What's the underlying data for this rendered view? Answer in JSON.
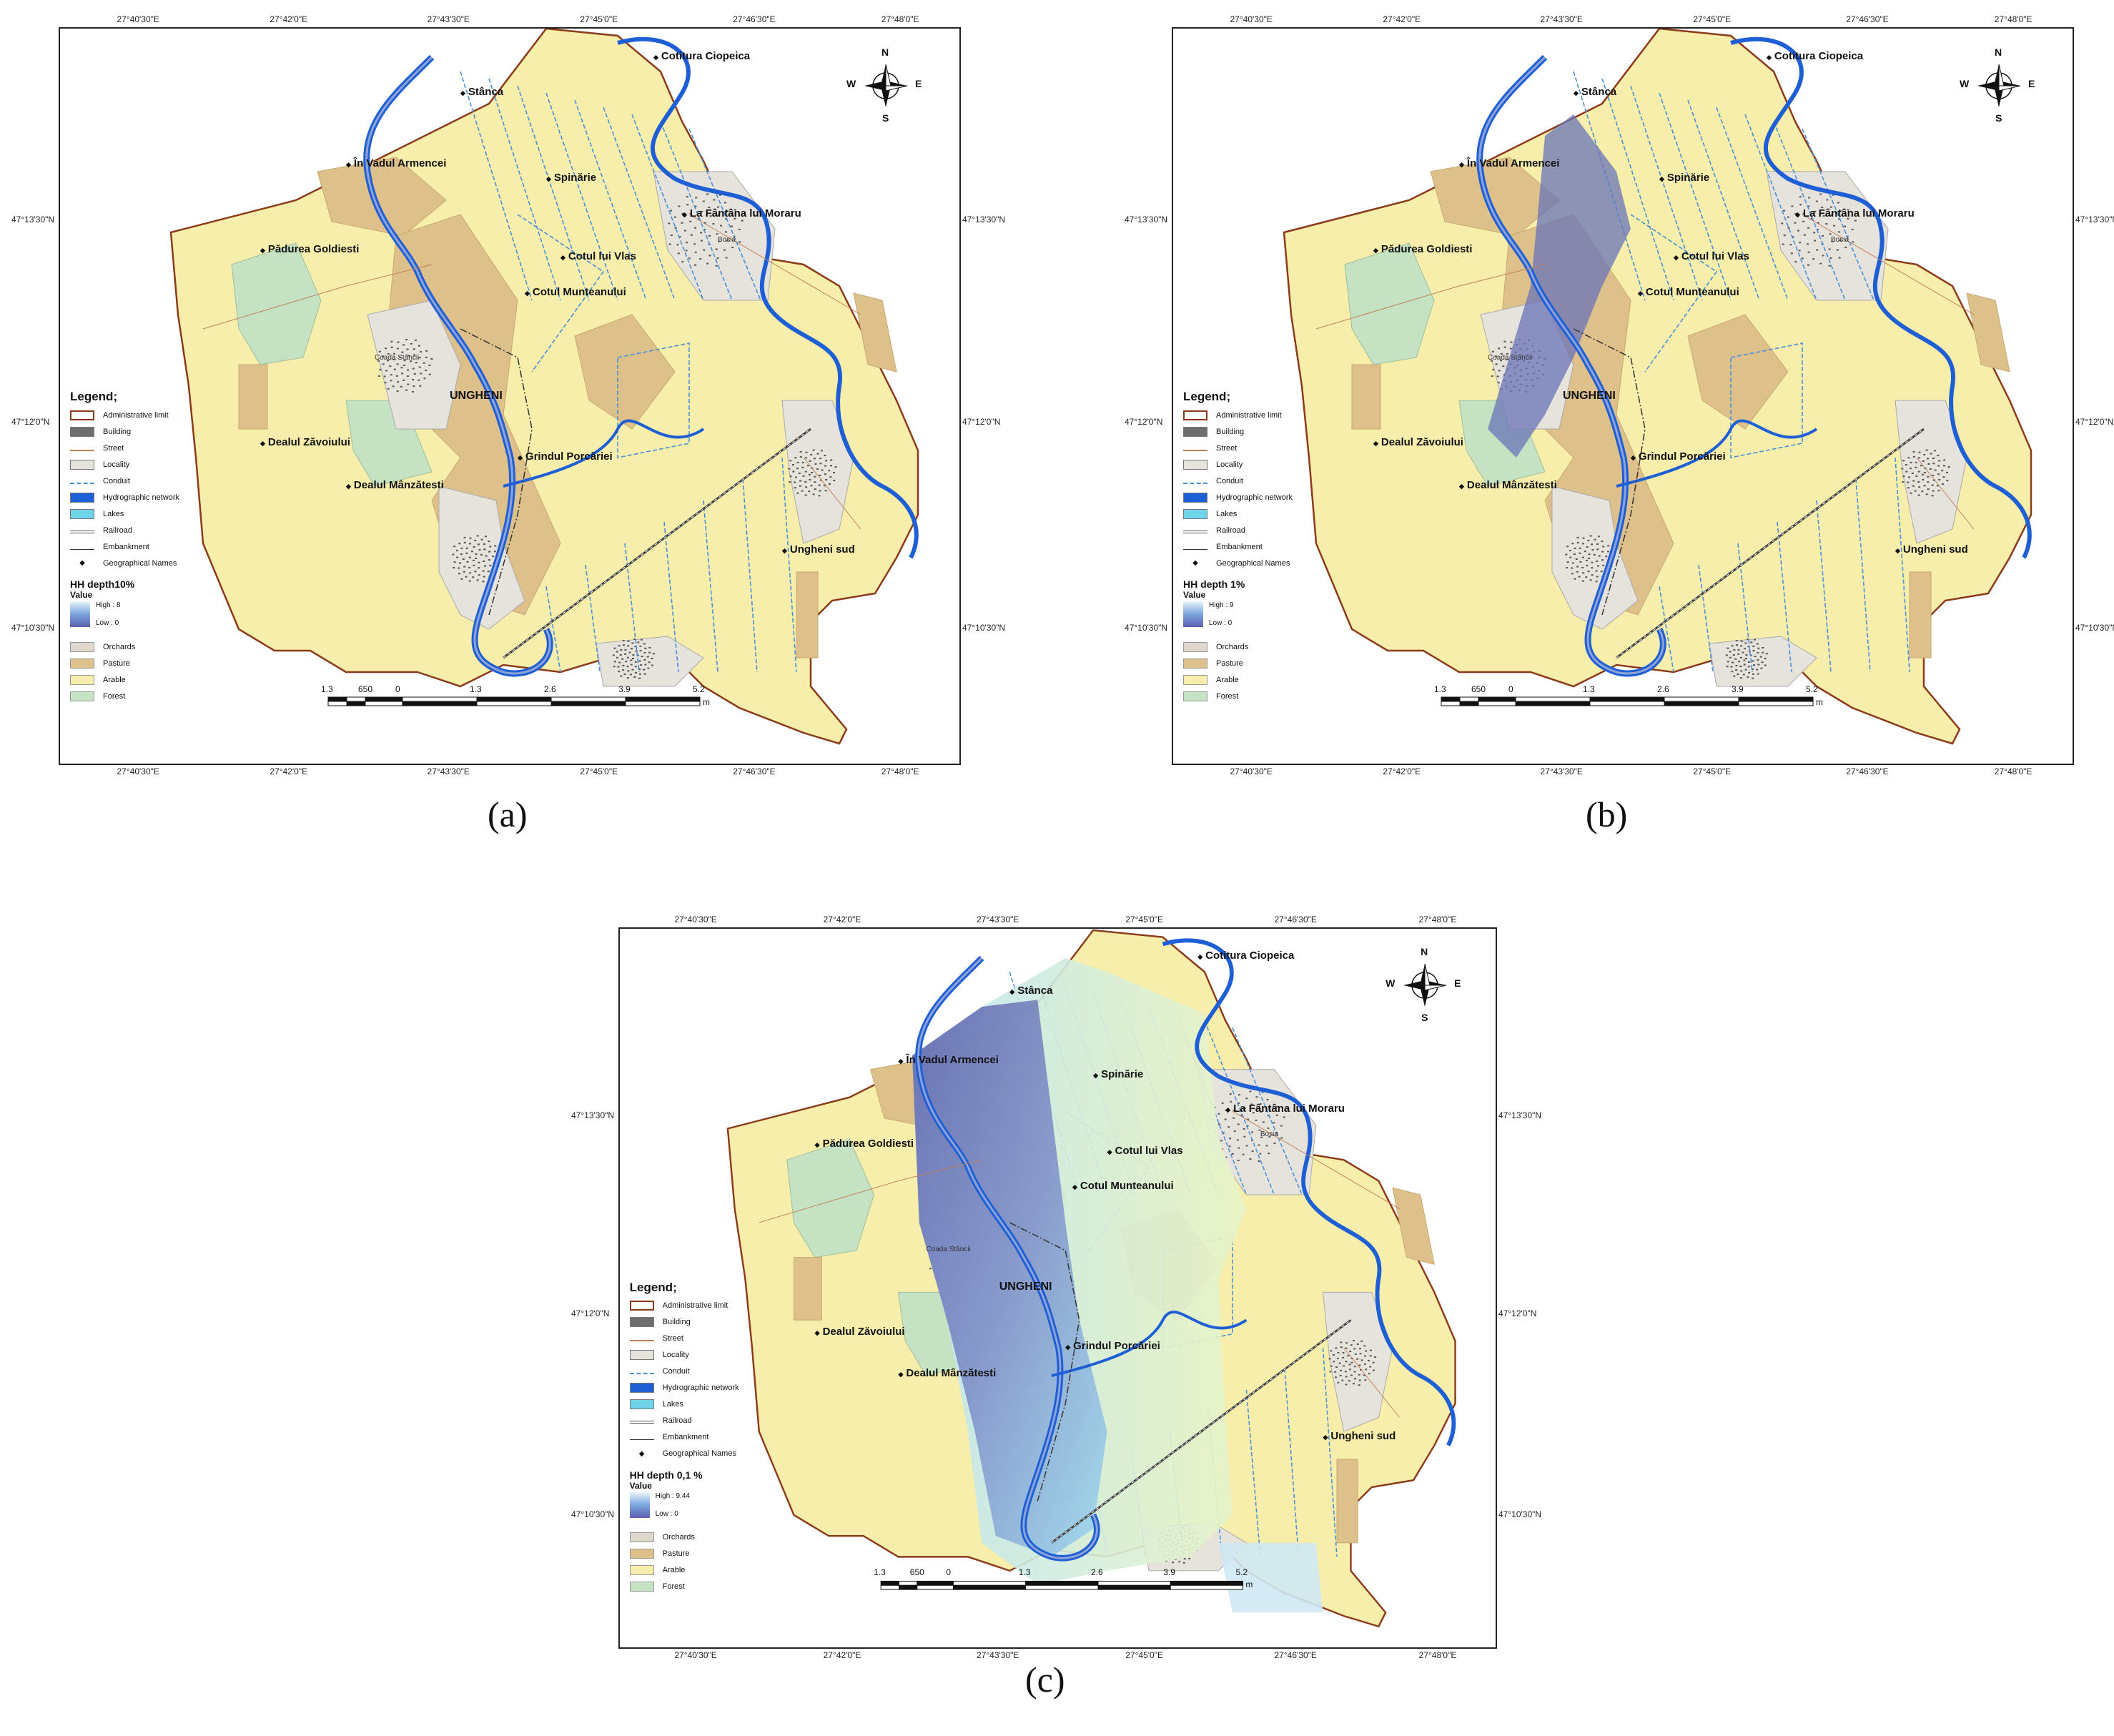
{
  "lon_labels": [
    "27°40'30\"E",
    "27°42'0\"E",
    "27°43'30\"E",
    "27°45'0\"E",
    "27°46'30\"E",
    "27°48'0\"E"
  ],
  "lat_labels": [
    "47°13'30\"N",
    "47°12'0\"N",
    "47°10'30\"N"
  ],
  "compass": {
    "n": "N",
    "s": "S",
    "e": "E",
    "w": "W"
  },
  "scale": {
    "ticks": [
      "1.3",
      "650",
      "0",
      "1.3",
      "2.6",
      "3.9",
      "5.2"
    ],
    "unit": "m"
  },
  "places": {
    "cotitura": "Cotitura Ciopeica",
    "stanca": "Stânca",
    "vadul": "În Vadul Armencei",
    "spinarie": "Spinărie",
    "fantana": "La Fântâna lui Moraru",
    "padurea": "Pădurea Goldiesti",
    "cotul_vlas": "Cotul lui Vlas",
    "cotul_munteanului": "Cotul Munteanului",
    "zavoului": "Dealul Zăvoiului",
    "grindul": "Grindul Porcăriei",
    "manzatesti": "Dealul Mânzătesti",
    "ungheni_sud": "Ungheni sud",
    "ungheni": "UNGHENI",
    "coada": "Coada Stâncii",
    "bosia": "Bosia"
  },
  "legend": {
    "title": "Legend;",
    "items": [
      {
        "label": "Administrative limit",
        "kind": "outline",
        "color": "#8b3a1a"
      },
      {
        "label": "Building",
        "kind": "fill",
        "color": "#6e6e6e"
      },
      {
        "label": "Street",
        "kind": "line",
        "color": "#c0805a"
      },
      {
        "label": "Locality",
        "kind": "fill",
        "color": "#e6e2dc"
      },
      {
        "label": "Conduit",
        "kind": "dash",
        "color": "#4a90d9"
      },
      {
        "label": "Hydrographic network",
        "kind": "fill",
        "color": "#1f5fd6"
      },
      {
        "label": "Lakes",
        "kind": "fill",
        "color": "#6fd3ea"
      },
      {
        "label": "Railroad",
        "kind": "rail",
        "color": "#555555"
      },
      {
        "label": "Embankment",
        "kind": "embank",
        "color": "#333333"
      },
      {
        "label": "Geographical Names",
        "kind": "point",
        "color": "#111111"
      }
    ],
    "value_label": "Value",
    "landuse": [
      {
        "label": "Orchards",
        "color": "#ddd7cc"
      },
      {
        "label": "Pasture",
        "color": "#ddc08a"
      },
      {
        "label": "Arable",
        "color": "#f6eeaa"
      },
      {
        "label": "Forest",
        "color": "#c5e2c3"
      }
    ]
  },
  "panels": [
    {
      "id": "a",
      "label": "(a)",
      "depth_title": "HH depth10%",
      "high": "High : 8",
      "low": "Low : 0"
    },
    {
      "id": "b",
      "label": "(b)",
      "depth_title": "HH depth  1%",
      "high": "High : 9",
      "low": "Low : 0"
    },
    {
      "id": "c",
      "label": "(c)",
      "depth_title": "HH depth 0,1 %",
      "high": "High : 9.44",
      "low": "Low : 0"
    }
  ],
  "colors": {
    "arable": "#f6eeaa",
    "pasture": "#ddc08a",
    "forest": "#c5e2c3",
    "locality": "#e6e2dc",
    "river": "#1f5fd6",
    "admin": "#8b3a1a",
    "flood_dark": "#6a74b8",
    "flood_light": "#8fd0ee"
  }
}
